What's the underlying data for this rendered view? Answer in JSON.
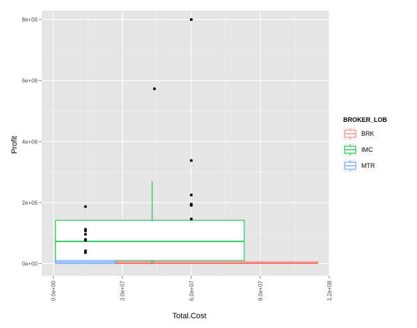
{
  "chart_data": {
    "type": "boxplot",
    "xlabel": "Total.Cost",
    "ylabel": "Profit",
    "xlim": [
      -5000000,
      120000000
    ],
    "ylim": [
      -400000,
      8300000
    ],
    "x_ticks": [
      0,
      30000000,
      60000000,
      90000000,
      120000000
    ],
    "x_tick_labels": [
      "0.0e+00",
      "3.0e+07",
      "6.0e+07",
      "9.0e+07",
      "1.2e+08"
    ],
    "y_ticks": [
      0,
      2000000,
      4000000,
      6000000,
      8000000
    ],
    "y_tick_labels": [
      "0e+00",
      "2e+06",
      "4e+06",
      "6e+06",
      "8e+06"
    ],
    "grid": true,
    "legend": {
      "title": "BROKER_LOB",
      "position": "right",
      "entries": [
        "BRK",
        "IMC",
        "MTR"
      ]
    },
    "series": [
      {
        "name": "BRK",
        "color": "#f8766d",
        "box": {
          "x_min": 27000000,
          "x_max": 115000000,
          "q1": 0,
          "median": 20000,
          "q3": 60000,
          "lower": 0,
          "upper": 60000,
          "x_center": 71000000
        },
        "outliers": []
      },
      {
        "name": "IMC",
        "color": "#00ba38",
        "box": {
          "x_min": 1000000,
          "x_max": 83000000,
          "q1": 100000,
          "median": 730000,
          "q3": 1420000,
          "lower": 0,
          "upper": 2700000,
          "x_center": 43000000
        },
        "outliers": []
      },
      {
        "name": "MTR",
        "color": "#619cff",
        "box": {
          "x_min": 1000000,
          "x_max": 27000000,
          "q1": 0,
          "median": 50000,
          "q3": 100000,
          "lower": 0,
          "upper": 100000,
          "x_center": 14000000
        },
        "outliers": []
      }
    ],
    "points": [
      {
        "x": 14000000,
        "y": 1870000
      },
      {
        "x": 14000000,
        "y": 1120000
      },
      {
        "x": 14000000,
        "y": 1070000
      },
      {
        "x": 14000000,
        "y": 960000
      },
      {
        "x": 14000000,
        "y": 790000
      },
      {
        "x": 14000000,
        "y": 760000
      },
      {
        "x": 14000000,
        "y": 420000
      },
      {
        "x": 14000000,
        "y": 360000
      },
      {
        "x": 44000000,
        "y": 5730000
      },
      {
        "x": 60000000,
        "y": 8000000
      },
      {
        "x": 60000000,
        "y": 3380000
      },
      {
        "x": 60000000,
        "y": 2250000
      },
      {
        "x": 60000000,
        "y": 1950000
      },
      {
        "x": 60000000,
        "y": 1910000
      },
      {
        "x": 60000000,
        "y": 1460000
      }
    ]
  }
}
